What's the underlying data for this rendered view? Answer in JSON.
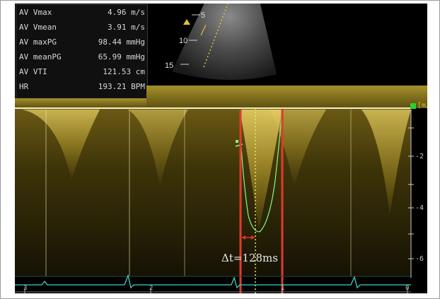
{
  "measurements": [
    {
      "label": "AV Vmax",
      "value": "4.96 m/s"
    },
    {
      "label": "AV Vmean",
      "value": "3.91 m/s"
    },
    {
      "label": "AV maxPG",
      "value": "98.44 mmHg"
    },
    {
      "label": "AV meanPG",
      "value": "65.99 mmHg"
    },
    {
      "label": "AV VTI",
      "value": "121.53 cm"
    },
    {
      "label": "HR",
      "value": "193.21 BPM"
    }
  ],
  "sector_depth_marks": [
    "5",
    "10",
    "15"
  ],
  "velocity_unit": "[m/",
  "velocity_ticks": [
    "-2",
    "-4",
    "-6"
  ],
  "time_ticks": [
    "3",
    "2",
    "1",
    "0"
  ],
  "annotation": "Δt=128ms",
  "colors": {
    "doppler": "#cfb63a",
    "envelope": "#7dff7d",
    "ecg": "#3fd1c6",
    "caliper": "#e23a2a",
    "baseline": "#f4f0c8"
  }
}
